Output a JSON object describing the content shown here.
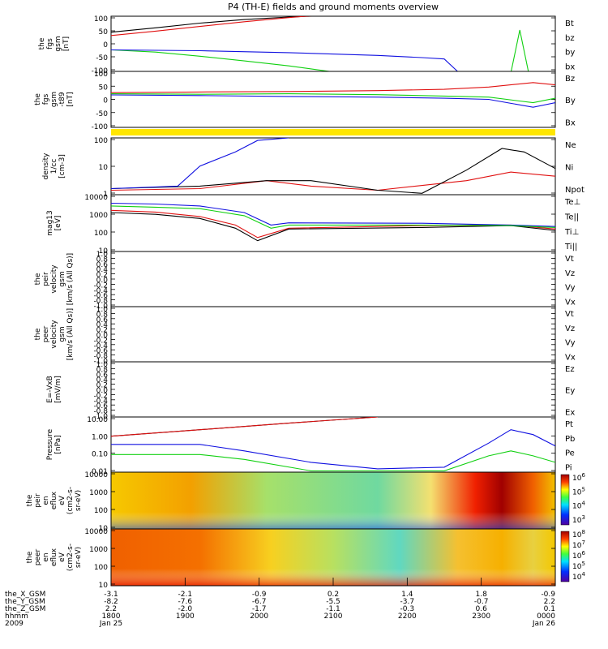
{
  "title": "P4 (TH-E) fields and ground moments overview",
  "colors": {
    "black": "#000000",
    "red": "#e01010",
    "green": "#10d010",
    "blue": "#1010e0",
    "yellow": "#ffe600"
  },
  "chart_data": [
    {
      "type": "line",
      "ylabel": "the\nfgs\ngsm\n[nT]",
      "ylim": [
        -100,
        100
      ],
      "yticks": [
        "100",
        "50",
        "0",
        "-50",
        "-100"
      ],
      "legend": [
        {
          "name": "Bt",
          "color": "#000000"
        },
        {
          "name": "bz",
          "color": "#e01010"
        },
        {
          "name": "by",
          "color": "#10d010"
        },
        {
          "name": "bx",
          "color": "#1010e0"
        }
      ],
      "series": [
        {
          "name": "Bt",
          "color": "#000000",
          "x": [
            0,
            0.1,
            0.2,
            0.3,
            0.4,
            0.5
          ],
          "y": [
            42,
            58,
            75,
            88,
            97,
            103
          ]
        },
        {
          "name": "bz",
          "color": "#e01010",
          "x": [
            0,
            0.1,
            0.2,
            0.3,
            0.4,
            0.5
          ],
          "y": [
            30,
            46,
            63,
            80,
            95,
            108
          ]
        },
        {
          "name": "by",
          "color": "#10d010",
          "x": [
            0,
            0.1,
            0.2,
            0.3,
            0.4,
            0.5,
            0.6,
            0.9,
            0.92,
            0.94
          ],
          "y": [
            -22,
            -30,
            -45,
            -62,
            -80,
            -102,
            -110,
            -105,
            50,
            -105
          ]
        },
        {
          "name": "bx",
          "color": "#1010e0",
          "x": [
            0,
            0.2,
            0.4,
            0.6,
            0.7,
            0.75,
            0.78
          ],
          "y": [
            -22,
            -25,
            -32,
            -42,
            -50,
            -55,
            -100
          ]
        }
      ]
    },
    {
      "type": "line",
      "ylabel": "the\nfgs\ngsm\n-t89\n[nT]",
      "ylim": [
        -150,
        100
      ],
      "yticks": [
        "100",
        "50",
        "0",
        "-50",
        "-100"
      ],
      "legend": [
        {
          "name": "Bz",
          "color": "#e01010"
        },
        {
          "name": "By",
          "color": "#10d010"
        },
        {
          "name": "Bx",
          "color": "#1010e0"
        }
      ],
      "series": [
        {
          "name": "Bz",
          "color": "#e01010",
          "x": [
            0,
            0.2,
            0.4,
            0.6,
            0.75,
            0.85,
            0.95,
            1
          ],
          "y": [
            5,
            8,
            10,
            14,
            20,
            30,
            50,
            40
          ]
        },
        {
          "name": "By",
          "color": "#10d010",
          "x": [
            0,
            0.2,
            0.4,
            0.6,
            0.75,
            0.85,
            0.95,
            1
          ],
          "y": [
            0,
            -2,
            0,
            -4,
            -10,
            -15,
            -40,
            -20
          ]
        },
        {
          "name": "Bx",
          "color": "#1010e0",
          "x": [
            0,
            0.2,
            0.4,
            0.6,
            0.75,
            0.85,
            0.95,
            1
          ],
          "y": [
            -5,
            -8,
            -12,
            -15,
            -20,
            -25,
            -60,
            -40
          ]
        }
      ]
    },
    {
      "type": "line",
      "ylabel": "density\n1/cc\n[cm-3]",
      "yscale": "log",
      "ylim": [
        0.3,
        200
      ],
      "yticks": [
        "100",
        "10",
        "1"
      ],
      "legend": [
        {
          "name": "Ne",
          "color": "#e01010"
        },
        {
          "name": "Ni",
          "color": "#000000"
        },
        {
          "name": "Npot",
          "color": "#1010e0"
        }
      ],
      "series": [
        {
          "name": "Ne",
          "color": "#e01010",
          "x": [
            0,
            0.2,
            0.35,
            0.45,
            0.6,
            0.8,
            0.9,
            1
          ],
          "y": [
            0.5,
            0.6,
            1.5,
            0.8,
            0.5,
            1.5,
            4,
            2.5
          ]
        },
        {
          "name": "Ni",
          "color": "#000000",
          "x": [
            0,
            0.2,
            0.35,
            0.45,
            0.6,
            0.7,
            0.8,
            0.88,
            0.93,
            1
          ],
          "y": [
            0.6,
            0.8,
            1.5,
            1.5,
            0.5,
            0.35,
            5,
            60,
            40,
            6
          ]
        },
        {
          "name": "Npot",
          "color": "#1010e0",
          "x": [
            0,
            0.15,
            0.2,
            0.28,
            0.33,
            0.4
          ],
          "y": [
            0.6,
            0.8,
            8,
            40,
            150,
            200
          ]
        }
      ]
    },
    {
      "type": "line",
      "ylabel": "mag13\n[eV]",
      "yscale": "log",
      "ylim": [
        10,
        15000
      ],
      "yticks": [
        "10000",
        "1000",
        "100",
        "10"
      ],
      "legend": [
        {
          "name": "Te⊥",
          "color": "#e01010"
        },
        {
          "name": "Te||",
          "color": "#000000"
        },
        {
          "name": "Ti⊥",
          "color": "#1010e0"
        },
        {
          "name": "Ti||",
          "color": "#10d010"
        }
      ],
      "series": [
        {
          "name": "Te⊥",
          "color": "#e01010",
          "x": [
            0,
            0.1,
            0.2,
            0.28,
            0.33,
            0.4,
            0.7,
            0.9,
            1
          ],
          "y": [
            2000,
            1600,
            900,
            300,
            60,
            200,
            280,
            300,
            180
          ]
        },
        {
          "name": "Te||",
          "color": "#000000",
          "x": [
            0,
            0.1,
            0.2,
            0.28,
            0.33,
            0.4,
            0.7,
            0.9,
            1
          ],
          "y": [
            1500,
            1200,
            700,
            200,
            40,
            180,
            220,
            280,
            150
          ]
        },
        {
          "name": "Ti⊥",
          "color": "#1010e0",
          "x": [
            0,
            0.1,
            0.2,
            0.3,
            0.36,
            0.4,
            0.7,
            0.9,
            1
          ],
          "y": [
            5000,
            4500,
            3500,
            1500,
            300,
            400,
            380,
            300,
            250
          ]
        },
        {
          "name": "Ti||",
          "color": "#10d010",
          "x": [
            0,
            0.1,
            0.2,
            0.3,
            0.36,
            0.4,
            0.7,
            0.9,
            1
          ],
          "y": [
            3500,
            3000,
            2500,
            1000,
            200,
            300,
            300,
            280,
            220
          ]
        }
      ]
    },
    {
      "type": "line",
      "ylabel": "the\npeir\nvelocity\ngsm\n[km/s (All Qs)]",
      "ylim": [
        -1,
        1
      ],
      "yticks": [
        "1.0",
        "0.8",
        "0.6",
        "0.4",
        "0.2",
        "0.0",
        "-0.2",
        "-0.4",
        "-0.6",
        "-0.8",
        "-1.0"
      ],
      "legend": [
        {
          "name": "Vt",
          "color": "#000000"
        },
        {
          "name": "Vz",
          "color": "#e01010"
        },
        {
          "name": "Vy",
          "color": "#10d010"
        },
        {
          "name": "Vx",
          "color": "#1010e0"
        }
      ],
      "series": []
    },
    {
      "type": "line",
      "ylabel": "the\npeer\nvelocity\ngsm\n[km/s (All Qs)]",
      "ylim": [
        -1,
        1
      ],
      "yticks": [
        "1.0",
        "0.8",
        "0.6",
        "0.4",
        "0.2",
        "0.0",
        "-0.2",
        "-0.4",
        "-0.6",
        "-0.8",
        "-1.0"
      ],
      "legend": [
        {
          "name": "Vt",
          "color": "#000000"
        },
        {
          "name": "Vz",
          "color": "#e01010"
        },
        {
          "name": "Vy",
          "color": "#10d010"
        },
        {
          "name": "Vx",
          "color": "#1010e0"
        }
      ],
      "series": []
    },
    {
      "type": "line",
      "ylabel": "E=-VxB\n[mV/m]",
      "ylim": [
        -1,
        1
      ],
      "yticks": [
        "1.0",
        "0.8",
        "0.6",
        "0.4",
        "0.2",
        "0.0",
        "-0.2",
        "-0.4",
        "-0.6",
        "-0.8",
        "-1.0"
      ],
      "legend": [
        {
          "name": "Ez",
          "color": "#e01010"
        },
        {
          "name": "Ey",
          "color": "#10d010"
        },
        {
          "name": "Ex",
          "color": "#1010e0"
        }
      ],
      "series": []
    },
    {
      "type": "line",
      "ylabel": "Pressure\n[nPa]",
      "yscale": "log",
      "ylim": [
        0.005,
        12
      ],
      "yticks": [
        "10.00",
        "1.00",
        "0.10",
        "0.01"
      ],
      "legend": [
        {
          "name": "Pt",
          "color": "#000000"
        },
        {
          "name": "Pb",
          "color": "#e01010"
        },
        {
          "name": "Pe",
          "color": "#10d010"
        },
        {
          "name": "Pi",
          "color": "#1010e0"
        }
      ],
      "series": [
        {
          "name": "Pt",
          "color": "#000000",
          "x": [
            0,
            0.2,
            0.4,
            0.6
          ],
          "y": [
            0.8,
            2,
            5,
            12
          ]
        },
        {
          "name": "Pb",
          "color": "#e01010",
          "x": [
            0,
            0.2,
            0.4,
            0.6
          ],
          "y": [
            0.8,
            2,
            5,
            12
          ]
        },
        {
          "name": "Pe",
          "color": "#10d010",
          "x": [
            0,
            0.2,
            0.3,
            0.45,
            0.6,
            0.75,
            0.85,
            0.9,
            0.95,
            1
          ],
          "y": [
            0.06,
            0.06,
            0.03,
            0.006,
            0.006,
            0.006,
            0.05,
            0.1,
            0.05,
            0.02
          ]
        },
        {
          "name": "Pi",
          "color": "#1010e0",
          "x": [
            0,
            0.2,
            0.3,
            0.45,
            0.6,
            0.75,
            0.85,
            0.9,
            0.95,
            1
          ],
          "y": [
            0.25,
            0.25,
            0.1,
            0.02,
            0.008,
            0.01,
            0.3,
            2,
            1,
            0.2
          ]
        }
      ]
    },
    {
      "type": "heatmap",
      "ylabel": "the\npeir\nen\neflux\neV\n(cm2-s-\nsr-eV)",
      "yticks": [
        "10000",
        "1000",
        "100",
        "10"
      ],
      "colorbar_ticks": [
        "10^6",
        "10^5",
        "10^4",
        "10^3"
      ]
    },
    {
      "type": "heatmap",
      "ylabel": "the\npeer\nen\neflux\neV\n(cm2-s-\nsr-eV)",
      "yticks": [
        "10000",
        "1000",
        "100",
        "10"
      ],
      "colorbar_ticks": [
        "10^8",
        "10^7",
        "10^6",
        "10^5",
        "10^4"
      ]
    }
  ],
  "x_axis": {
    "row_labels": [
      "the_X_GSM",
      "the_Y_GSM",
      "the_Z_GSM",
      "hhmm",
      "2009"
    ],
    "ticks": [
      {
        "values": [
          "-3.1",
          "-8.2",
          "2.2",
          "1800",
          "Jan 25"
        ]
      },
      {
        "values": [
          "-2.1",
          "-7.6",
          "-2.0",
          "1900",
          ""
        ]
      },
      {
        "values": [
          "-0.9",
          "-6.7",
          "-1.7",
          "2000",
          ""
        ]
      },
      {
        "values": [
          "0.2",
          "-5.5",
          "-1.1",
          "2100",
          ""
        ]
      },
      {
        "values": [
          "1.4",
          "-3.7",
          "-0.3",
          "2200",
          ""
        ]
      },
      {
        "values": [
          "1.8",
          "-0.7",
          "0.6",
          "2300",
          ""
        ]
      },
      {
        "values": [
          "-0.9",
          "2.2",
          "0.1",
          "0000",
          "Jan 26"
        ]
      }
    ]
  }
}
